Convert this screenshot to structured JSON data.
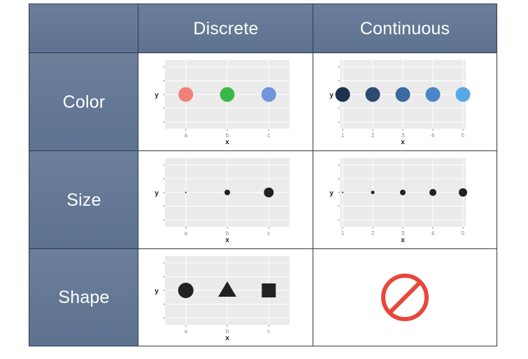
{
  "header": {
    "corner": "",
    "col_discrete": "Discrete",
    "col_continuous": "Continuous"
  },
  "rows": {
    "color": "Color",
    "size": "Size",
    "shape": "Shape"
  },
  "colors": {
    "header_bg": "#5d7290",
    "panel_bg": "#ebebeb",
    "grid": "#ffffff",
    "point_dark": "#222222",
    "prohibited": "#e8473c"
  },
  "plots": {
    "axis_x_label": "x",
    "axis_y_label": "y",
    "discrete_ticks": [
      "a",
      "b",
      "c"
    ],
    "continuous_ticks": [
      "1",
      "2",
      "3",
      "4",
      "5"
    ],
    "color_discrete": {
      "points": [
        {
          "x": "a",
          "color": "#f08078"
        },
        {
          "x": "b",
          "color": "#3cb84a"
        },
        {
          "x": "c",
          "color": "#6f95db"
        }
      ]
    },
    "color_continuous": {
      "points": [
        {
          "x": 1,
          "color": "#1f3150"
        },
        {
          "x": 2,
          "color": "#2c4a72"
        },
        {
          "x": 3,
          "color": "#3a6a9e"
        },
        {
          "x": 4,
          "color": "#4987c8"
        },
        {
          "x": 5,
          "color": "#5aa7e6"
        }
      ]
    },
    "size_discrete": {
      "points": [
        {
          "x": "a",
          "size": 1
        },
        {
          "x": "b",
          "size": 4
        },
        {
          "x": "c",
          "size": 7
        }
      ]
    },
    "size_continuous": {
      "points": [
        {
          "x": 1,
          "size": 1
        },
        {
          "x": 2,
          "size": 2.5
        },
        {
          "x": 3,
          "size": 4
        },
        {
          "x": 4,
          "size": 5
        },
        {
          "x": 5,
          "size": 6
        }
      ]
    },
    "shape_discrete": {
      "points": [
        {
          "x": "a",
          "shape": "circle"
        },
        {
          "x": "b",
          "shape": "triangle"
        },
        {
          "x": "c",
          "shape": "square"
        }
      ]
    },
    "shape_continuous": {
      "icon": "prohibited-icon"
    }
  }
}
